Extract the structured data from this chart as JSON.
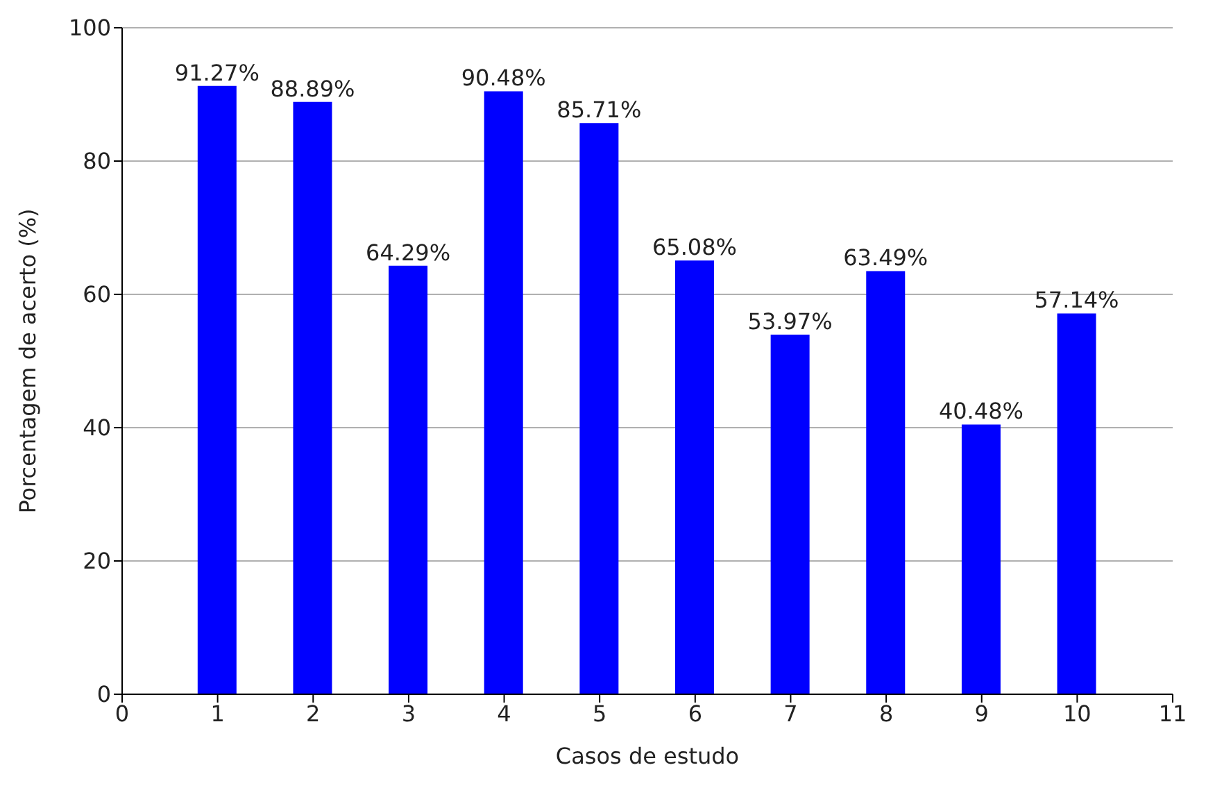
{
  "chart_data": {
    "type": "bar",
    "xlabel": "Casos de estudo",
    "ylabel": "Porcentagem de acerto (%)",
    "x": [
      1,
      2,
      3,
      4,
      5,
      6,
      7,
      8,
      9,
      10
    ],
    "values": [
      91.27,
      88.89,
      64.29,
      90.48,
      85.71,
      65.08,
      53.97,
      63.49,
      40.48,
      57.14
    ],
    "value_labels": [
      "91.27%",
      "88.89%",
      "64.29%",
      "90.48%",
      "85.71%",
      "65.08%",
      "53.97%",
      "63.49%",
      "40.48%",
      "57.14%"
    ],
    "color": "#0000ff",
    "xlim": [
      0,
      11
    ],
    "xticks": [
      0,
      1,
      2,
      3,
      4,
      5,
      6,
      7,
      8,
      9,
      10,
      11
    ],
    "ylim": [
      0,
      100
    ],
    "yticks": [
      0,
      20,
      40,
      60,
      80,
      100
    ],
    "grid": "y"
  }
}
